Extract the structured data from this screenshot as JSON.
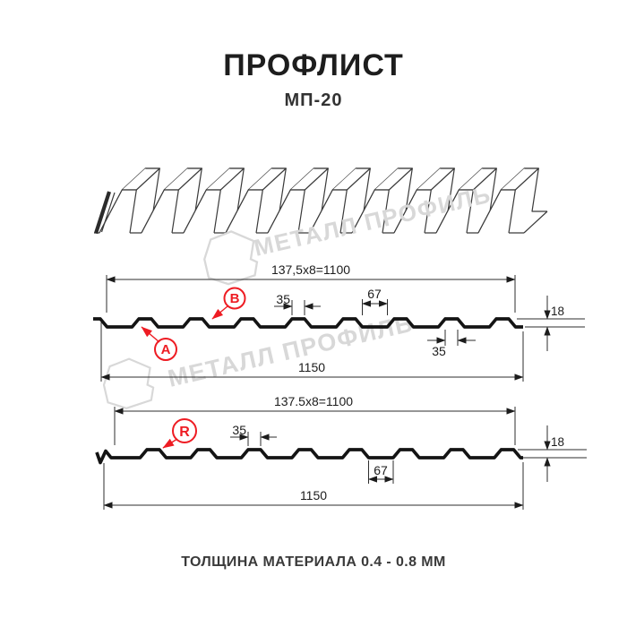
{
  "page": {
    "title": "ПРОФЛИСТ",
    "subtitle": "МП-20",
    "footer": "ТОЛЩИНА МАТЕРИАЛА 0.4 - 0.8 ММ"
  },
  "watermark": {
    "text": "МЕТАЛЛ ПРОФИЛЬ"
  },
  "colors": {
    "accent_red": "#ee1c23",
    "profile_line": "#141414",
    "dimension_line": "#2e2e2e",
    "watermark_gray": "#d8d8d8"
  },
  "section1": {
    "dim_top": "137,5x8=1100",
    "dim_rib_top": "35",
    "dim_valley": "67",
    "dim_height": "18",
    "dim_rib_bottom": "35",
    "dim_total": "1150",
    "label_a": "А",
    "label_b": "В"
  },
  "section2": {
    "dim_top": "137.5x8=1100",
    "dim_rib_top": "35",
    "dim_valley": "67",
    "dim_height": "18",
    "dim_total": "1150",
    "label_r": "R"
  }
}
